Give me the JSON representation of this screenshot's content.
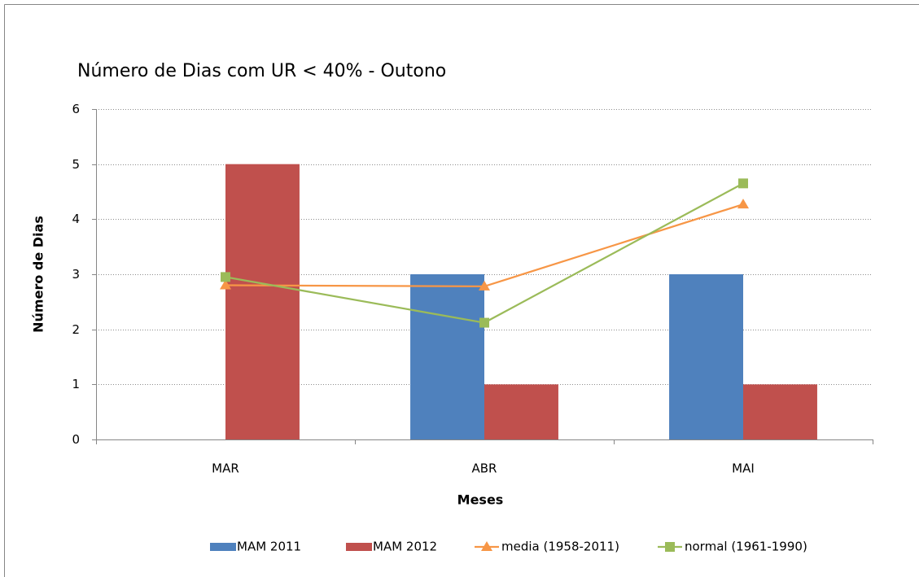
{
  "chart_data": {
    "type": "bar",
    "title": "Número de Dias com UR < 40% - Outono",
    "x_label": "Meses",
    "y_label": "Número de Dias",
    "categories": [
      "MAR",
      "ABR",
      "MAI"
    ],
    "series": [
      {
        "name": "MAM 2011",
        "type": "bar",
        "color": "#4f81bd",
        "values": [
          0,
          3,
          3
        ]
      },
      {
        "name": "MAM 2012",
        "type": "bar",
        "color": "#c0504d",
        "values": [
          5,
          1,
          1
        ]
      },
      {
        "name": "media (1958-2011)",
        "type": "line",
        "marker": "triangle",
        "color": "#f79646",
        "values": [
          2.8,
          2.78,
          4.27
        ]
      },
      {
        "name": "normal (1961-1990)",
        "type": "line",
        "marker": "square",
        "color": "#9bbb59",
        "values": [
          2.95,
          2.12,
          4.65
        ]
      }
    ],
    "ylim": [
      0,
      6
    ],
    "yticks": [
      0,
      1,
      2,
      3,
      4,
      5,
      6
    ],
    "grid": true,
    "legend": "bottom"
  }
}
